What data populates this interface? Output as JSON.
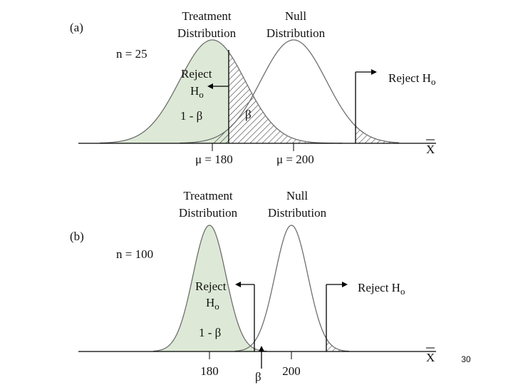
{
  "slide": {
    "page_number": "30"
  },
  "panel_a": {
    "label": "(a)",
    "sample_size": "n = 25",
    "treatment_title": [
      "Treatment",
      "Distribution"
    ],
    "null_title": [
      "Null",
      "Distribution"
    ],
    "reject_left": {
      "line1": "Reject",
      "line2": "H",
      "sub": "o"
    },
    "reject_right": {
      "text": "Reject H",
      "sub": "o"
    },
    "power": "1 - β",
    "beta": "β",
    "axis_var": "X",
    "mu_treatment": "μ = 180",
    "mu_null": "μ = 200"
  },
  "panel_b": {
    "label": "(b)",
    "sample_size": "n = 100",
    "treatment_title": [
      "Treatment",
      "Distribution"
    ],
    "null_title": [
      "Null",
      "Distribution"
    ],
    "reject_left": {
      "line1": "Reject",
      "line2": "H",
      "sub": "o"
    },
    "reject_right": {
      "text": "Reject H",
      "sub": "o"
    },
    "power": "1 - β",
    "beta": "β",
    "axis_var": "X",
    "mu_treatment": "180",
    "mu_null": "200"
  },
  "colors": {
    "treatment_fill": "#dde9d6",
    "curve": "#6f6f6f",
    "axis": "#000000"
  }
}
